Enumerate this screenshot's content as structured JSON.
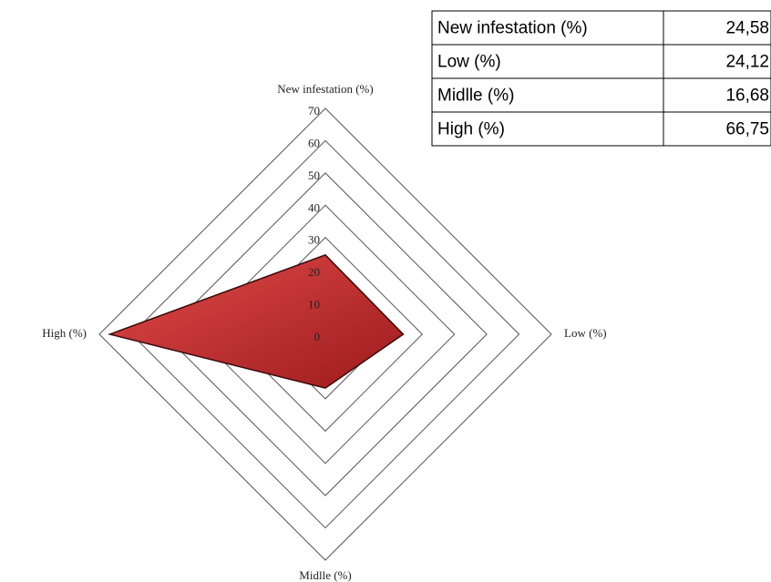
{
  "chart_data": {
    "type": "radar",
    "categories": [
      "New infestation (%)",
      "Low (%)",
      "Midlle (%)",
      "High (%)"
    ],
    "values": [
      24.58,
      24.12,
      16.68,
      66.75
    ],
    "value_labels": [
      "24,58",
      "24,12",
      "16,68",
      "66,75"
    ],
    "color": "#c62a2c",
    "rlim": [
      0,
      70
    ],
    "rticks": [
      0,
      10,
      20,
      30,
      40,
      50,
      60,
      70
    ],
    "grid": true
  }
}
